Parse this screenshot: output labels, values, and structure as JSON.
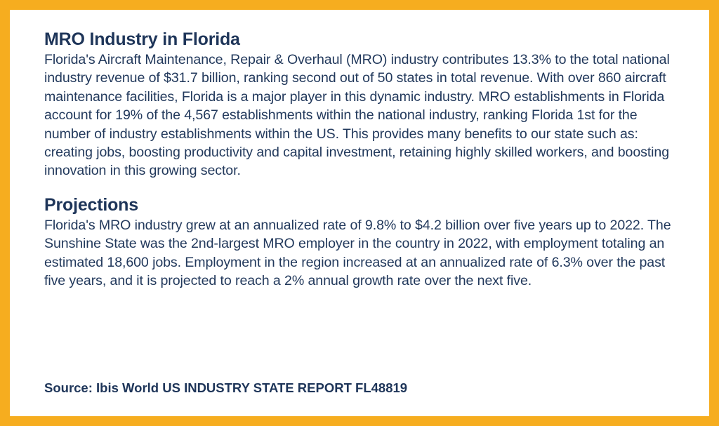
{
  "sections": [
    {
      "title": "MRO Industry in Florida",
      "body": "Florida's Aircraft Maintenance, Repair & Overhaul (MRO) industry contributes 13.3% to the total national industry revenue of $31.7 billion, ranking second out of 50 states in total revenue. With over 860 aircraft maintenance facilities, Florida is a major player in this dynamic industry. MRO establishments in Florida account for 19% of the 4,567 establishments within the national industry, ranking Florida 1st for the number of industry establishments within the US. This provides many benefits to our state such as: creating jobs, boosting productivity and capital investment, retaining highly skilled workers, and boosting innovation in this growing sector."
    },
    {
      "title": "Projections",
      "body": "Florida's MRO industry grew at an annualized rate of 9.8% to $4.2 billion over five years up to 2022. The Sunshine State was the 2nd-largest MRO employer in the country in 2022, with employment totaling an estimated 18,600 jobs. Employment in the region increased at an annualized rate of 6.3% over the past five years, and it is projected to reach a 2% annual growth rate over the next five."
    }
  ],
  "source": "Source: Ibis World US INDUSTRY STATE REPORT FL48819",
  "colors": {
    "border": "#f6ad1f",
    "text": "#22395c",
    "background": "#ffffff"
  }
}
